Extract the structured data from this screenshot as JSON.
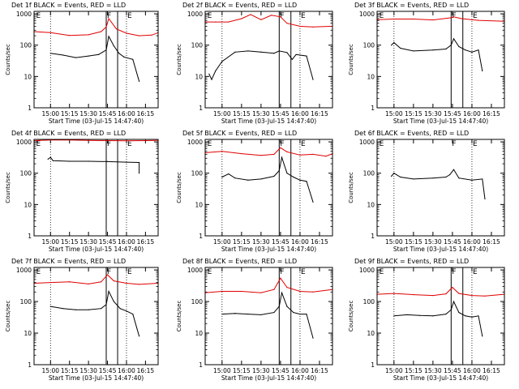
{
  "page": {
    "x_tick_labels": [
      "15:00",
      "15:15",
      "15:30",
      "15:45",
      "16:00",
      "16:15"
    ],
    "ylabel": "Counts/sec",
    "xlabel": "Start Time (03-Jul-15 14:47:40)",
    "y_tick_labels": [
      "1",
      "10",
      "100",
      "1000"
    ],
    "colors": {
      "events": "#000000",
      "lld": "#e00000",
      "axes": "#000000"
    }
  },
  "chart_data": [
    {
      "type": "line",
      "title": "Det 1f BLACK = Events, RED = LLD",
      "xlim": [
        "14:47",
        "16:25"
      ],
      "ylim": [
        1,
        1200
      ],
      "y_scale": "log",
      "grid": false,
      "legend": "title",
      "series": [
        {
          "name": "Events",
          "x": [
            "15:00",
            "15:10",
            "15:20",
            "15:30",
            "15:38",
            "15:44",
            "15:46",
            "15:50",
            "15:54",
            "15:58",
            "16:05",
            "16:10"
          ],
          "y": [
            55,
            48,
            40,
            45,
            50,
            70,
            190,
            95,
            55,
            42,
            35,
            7
          ]
        },
        {
          "name": "LLD",
          "x": [
            "14:47",
            "15:00",
            "15:15",
            "15:30",
            "15:40",
            "15:44",
            "15:46",
            "15:52",
            "16:00",
            "16:10",
            "16:20",
            "16:25"
          ],
          "y": [
            270,
            250,
            205,
            215,
            270,
            380,
            700,
            330,
            240,
            200,
            210,
            250
          ]
        }
      ],
      "markers": {
        "dotted": [
          "15:00",
          "16:00"
        ],
        "solid": [
          "15:44",
          "15:53"
        ],
        "labels": [
          {
            "text": "E",
            "at": "14:48"
          },
          {
            "text": "F",
            "at": "15:44"
          },
          {
            "text": "E",
            "at": "16:00"
          }
        ]
      }
    },
    {
      "type": "line",
      "title": "Det 2f BLACK = Events, RED = LLD",
      "xlim": [
        "14:47",
        "16:25"
      ],
      "ylim": [
        1,
        1200
      ],
      "y_scale": "log",
      "grid": false,
      "legend": "title",
      "series": [
        {
          "name": "Events",
          "x": [
            "14:50",
            "14:52",
            "14:55",
            "15:00",
            "15:10",
            "15:20",
            "15:30",
            "15:40",
            "15:44",
            "15:50",
            "15:54",
            "15:57",
            "16:05",
            "16:10"
          ],
          "y": [
            12,
            8,
            15,
            30,
            60,
            65,
            60,
            55,
            65,
            58,
            35,
            50,
            45,
            8
          ]
        },
        {
          "name": "LLD",
          "x": [
            "14:47",
            "14:55",
            "15:05",
            "15:15",
            "15:22",
            "15:30",
            "15:38",
            "15:45",
            "15:50",
            "16:00",
            "16:10",
            "16:25"
          ],
          "y": [
            550,
            550,
            550,
            700,
            950,
            650,
            900,
            800,
            500,
            400,
            380,
            400
          ]
        }
      ],
      "markers": {
        "dotted": [
          "15:00",
          "16:00"
        ],
        "solid": [
          "15:44",
          "15:53"
        ],
        "labels": [
          {
            "text": "E",
            "at": "14:48"
          },
          {
            "text": "F",
            "at": "15:44"
          },
          {
            "text": "E",
            "at": "16:00"
          }
        ]
      }
    },
    {
      "type": "line",
      "title": "Det 3f BLACK = Events, RED = LLD",
      "xlim": [
        "14:47",
        "16:25"
      ],
      "ylim": [
        1,
        1200
      ],
      "y_scale": "log",
      "grid": false,
      "legend": "title",
      "series": [
        {
          "name": "Events",
          "x": [
            "14:58",
            "15:00",
            "15:05",
            "15:15",
            "15:30",
            "15:40",
            "15:44",
            "15:46",
            "15:50",
            "15:55",
            "16:00",
            "16:05",
            "16:08"
          ],
          "y": [
            100,
            120,
            80,
            65,
            70,
            75,
            100,
            160,
            90,
            70,
            60,
            70,
            15
          ]
        },
        {
          "name": "LLD",
          "x": [
            "14:47",
            "15:00",
            "15:15",
            "15:30",
            "15:44",
            "15:46",
            "15:52",
            "16:05",
            "16:25"
          ],
          "y": [
            650,
            680,
            680,
            640,
            750,
            800,
            700,
            620,
            580
          ]
        }
      ],
      "markers": {
        "dotted": [
          "15:00",
          "16:00"
        ],
        "solid": [
          "15:44",
          "15:53"
        ],
        "labels": [
          {
            "text": "E",
            "at": "14:48"
          },
          {
            "text": "F",
            "at": "15:44"
          },
          {
            "text": "E",
            "at": "16:00"
          }
        ]
      }
    },
    {
      "type": "line",
      "title": "Det 4f BLACK = Events, RED = LLD",
      "xlim": [
        "14:47",
        "16:25"
      ],
      "ylim": [
        1,
        1200
      ],
      "y_scale": "log",
      "grid": false,
      "legend": "title",
      "series": [
        {
          "name": "Events",
          "x": [
            "14:58",
            "15:00",
            "15:02",
            "15:15",
            "15:30",
            "15:45",
            "16:00",
            "16:10",
            "16:10"
          ],
          "y": [
            280,
            320,
            250,
            240,
            240,
            235,
            225,
            220,
            100
          ]
        },
        {
          "name": "LLD",
          "x": [
            "14:47",
            "15:00",
            "15:15",
            "15:30",
            "15:45",
            "16:00",
            "16:15",
            "16:25"
          ],
          "y": [
            1100,
            1150,
            1150,
            1120,
            1100,
            1080,
            1100,
            1120
          ]
        }
      ],
      "markers": {
        "dotted": [
          "15:00",
          "16:00"
        ],
        "solid": [
          "15:44",
          "15:53"
        ],
        "labels": [
          {
            "text": "E",
            "at": "14:48"
          },
          {
            "text": "F",
            "at": "15:44"
          },
          {
            "text": "E",
            "at": "16:00"
          }
        ]
      }
    },
    {
      "type": "line",
      "title": "Det 5f BLACK = Events, RED = LLD",
      "xlim": [
        "14:47",
        "16:25"
      ],
      "ylim": [
        1,
        1200
      ],
      "y_scale": "log",
      "grid": false,
      "legend": "title",
      "series": [
        {
          "name": "Events",
          "x": [
            "15:00",
            "15:05",
            "15:10",
            "15:20",
            "15:30",
            "15:40",
            "15:44",
            "15:46",
            "15:50",
            "15:55",
            "16:00",
            "16:05",
            "16:10"
          ],
          "y": [
            75,
            95,
            70,
            60,
            65,
            80,
            120,
            320,
            100,
            75,
            60,
            55,
            12
          ]
        },
        {
          "name": "LLD",
          "x": [
            "14:47",
            "15:00",
            "15:15",
            "15:30",
            "15:40",
            "15:45",
            "15:50",
            "16:00",
            "16:10",
            "16:20",
            "16:25"
          ],
          "y": [
            450,
            500,
            420,
            370,
            400,
            650,
            480,
            380,
            400,
            350,
            420
          ]
        }
      ],
      "markers": {
        "dotted": [
          "15:00",
          "16:00"
        ],
        "solid": [
          "15:44",
          "15:53"
        ],
        "labels": [
          {
            "text": "E",
            "at": "14:48"
          },
          {
            "text": "F",
            "at": "15:44"
          },
          {
            "text": "E",
            "at": "16:00"
          }
        ]
      }
    },
    {
      "type": "line",
      "title": "Det 6f BLACK = Events, RED = LLD",
      "xlim": [
        "14:47",
        "16:25"
      ],
      "ylim": [
        1,
        1200
      ],
      "y_scale": "log",
      "grid": false,
      "legend": "title",
      "series": [
        {
          "name": "Events",
          "x": [
            "14:58",
            "15:00",
            "15:05",
            "15:15",
            "15:30",
            "15:40",
            "15:43",
            "15:46",
            "15:50",
            "16:00",
            "16:08",
            "16:10"
          ],
          "y": [
            80,
            100,
            75,
            65,
            70,
            75,
            90,
            130,
            70,
            60,
            65,
            15
          ]
        }
      ],
      "markers": {
        "dotted": [
          "15:00",
          "16:00"
        ],
        "solid": [],
        "labels": [
          {
            "text": "E",
            "at": "14:48"
          },
          {
            "text": "F",
            "at": "15:44"
          },
          {
            "text": "E",
            "at": "16:00"
          }
        ]
      }
    },
    {
      "type": "line",
      "title": "Det 7f BLACK = Events, RED = LLD",
      "xlim": [
        "14:47",
        "16:25"
      ],
      "ylim": [
        1,
        1200
      ],
      "y_scale": "log",
      "grid": false,
      "legend": "title",
      "series": [
        {
          "name": "Events",
          "x": [
            "15:00",
            "15:10",
            "15:20",
            "15:30",
            "15:40",
            "15:44",
            "15:46",
            "15:50",
            "15:55",
            "16:00",
            "16:05",
            "16:10"
          ],
          "y": [
            70,
            60,
            55,
            55,
            60,
            80,
            210,
            100,
            60,
            50,
            40,
            8
          ]
        },
        {
          "name": "LLD",
          "x": [
            "14:47",
            "15:00",
            "15:15",
            "15:30",
            "15:40",
            "15:45",
            "15:50",
            "16:00",
            "16:10",
            "16:25"
          ],
          "y": [
            380,
            400,
            420,
            360,
            420,
            700,
            450,
            380,
            350,
            380
          ]
        }
      ],
      "markers": {
        "dotted": [
          "15:00",
          "16:00"
        ],
        "solid": [
          "15:44",
          "15:53"
        ],
        "labels": [
          {
            "text": "E",
            "at": "14:48"
          },
          {
            "text": "F",
            "at": "15:44"
          },
          {
            "text": "E",
            "at": "16:00"
          }
        ]
      }
    },
    {
      "type": "line",
      "title": "Det 8f BLACK = Events, RED = LLD",
      "xlim": [
        "14:47",
        "16:25"
      ],
      "ylim": [
        1,
        1200
      ],
      "y_scale": "log",
      "grid": false,
      "legend": "title",
      "series": [
        {
          "name": "Events",
          "x": [
            "15:00",
            "15:10",
            "15:20",
            "15:30",
            "15:40",
            "15:44",
            "15:46",
            "15:50",
            "15:55",
            "16:00",
            "16:05",
            "16:10"
          ],
          "y": [
            40,
            42,
            40,
            38,
            45,
            70,
            190,
            70,
            45,
            40,
            40,
            7
          ]
        },
        {
          "name": "LLD",
          "x": [
            "14:47",
            "15:00",
            "15:15",
            "15:30",
            "15:40",
            "15:45",
            "15:50",
            "16:00",
            "16:10",
            "16:25"
          ],
          "y": [
            190,
            210,
            210,
            190,
            240,
            550,
            280,
            210,
            200,
            240
          ]
        }
      ],
      "markers": {
        "dotted": [
          "15:00",
          "16:00"
        ],
        "solid": [
          "15:44",
          "15:53"
        ],
        "labels": [
          {
            "text": "E",
            "at": "14:48"
          },
          {
            "text": "F",
            "at": "15:44"
          },
          {
            "text": "E",
            "at": "16:00"
          }
        ]
      }
    },
    {
      "type": "line",
      "title": "Det 9f BLACK = Events, RED = LLD",
      "xlim": [
        "14:47",
        "16:25"
      ],
      "ylim": [
        1,
        1200
      ],
      "y_scale": "log",
      "grid": false,
      "legend": "title",
      "series": [
        {
          "name": "Events",
          "x": [
            "15:00",
            "15:10",
            "15:20",
            "15:30",
            "15:40",
            "15:44",
            "15:46",
            "15:50",
            "15:55",
            "16:00",
            "16:05",
            "16:08"
          ],
          "y": [
            35,
            38,
            36,
            35,
            40,
            55,
            100,
            45,
            35,
            32,
            35,
            8
          ]
        },
        {
          "name": "LLD",
          "x": [
            "14:47",
            "15:00",
            "15:15",
            "15:30",
            "15:40",
            "15:45",
            "15:50",
            "16:00",
            "16:10",
            "16:25"
          ],
          "y": [
            170,
            180,
            165,
            155,
            175,
            280,
            180,
            155,
            150,
            170
          ]
        }
      ],
      "markers": {
        "dotted": [
          "15:00",
          "16:00"
        ],
        "solid": [
          "15:44",
          "15:53"
        ],
        "labels": [
          {
            "text": "E",
            "at": "14:48"
          },
          {
            "text": "F",
            "at": "15:44"
          },
          {
            "text": "E",
            "at": "16:00"
          }
        ]
      }
    }
  ]
}
